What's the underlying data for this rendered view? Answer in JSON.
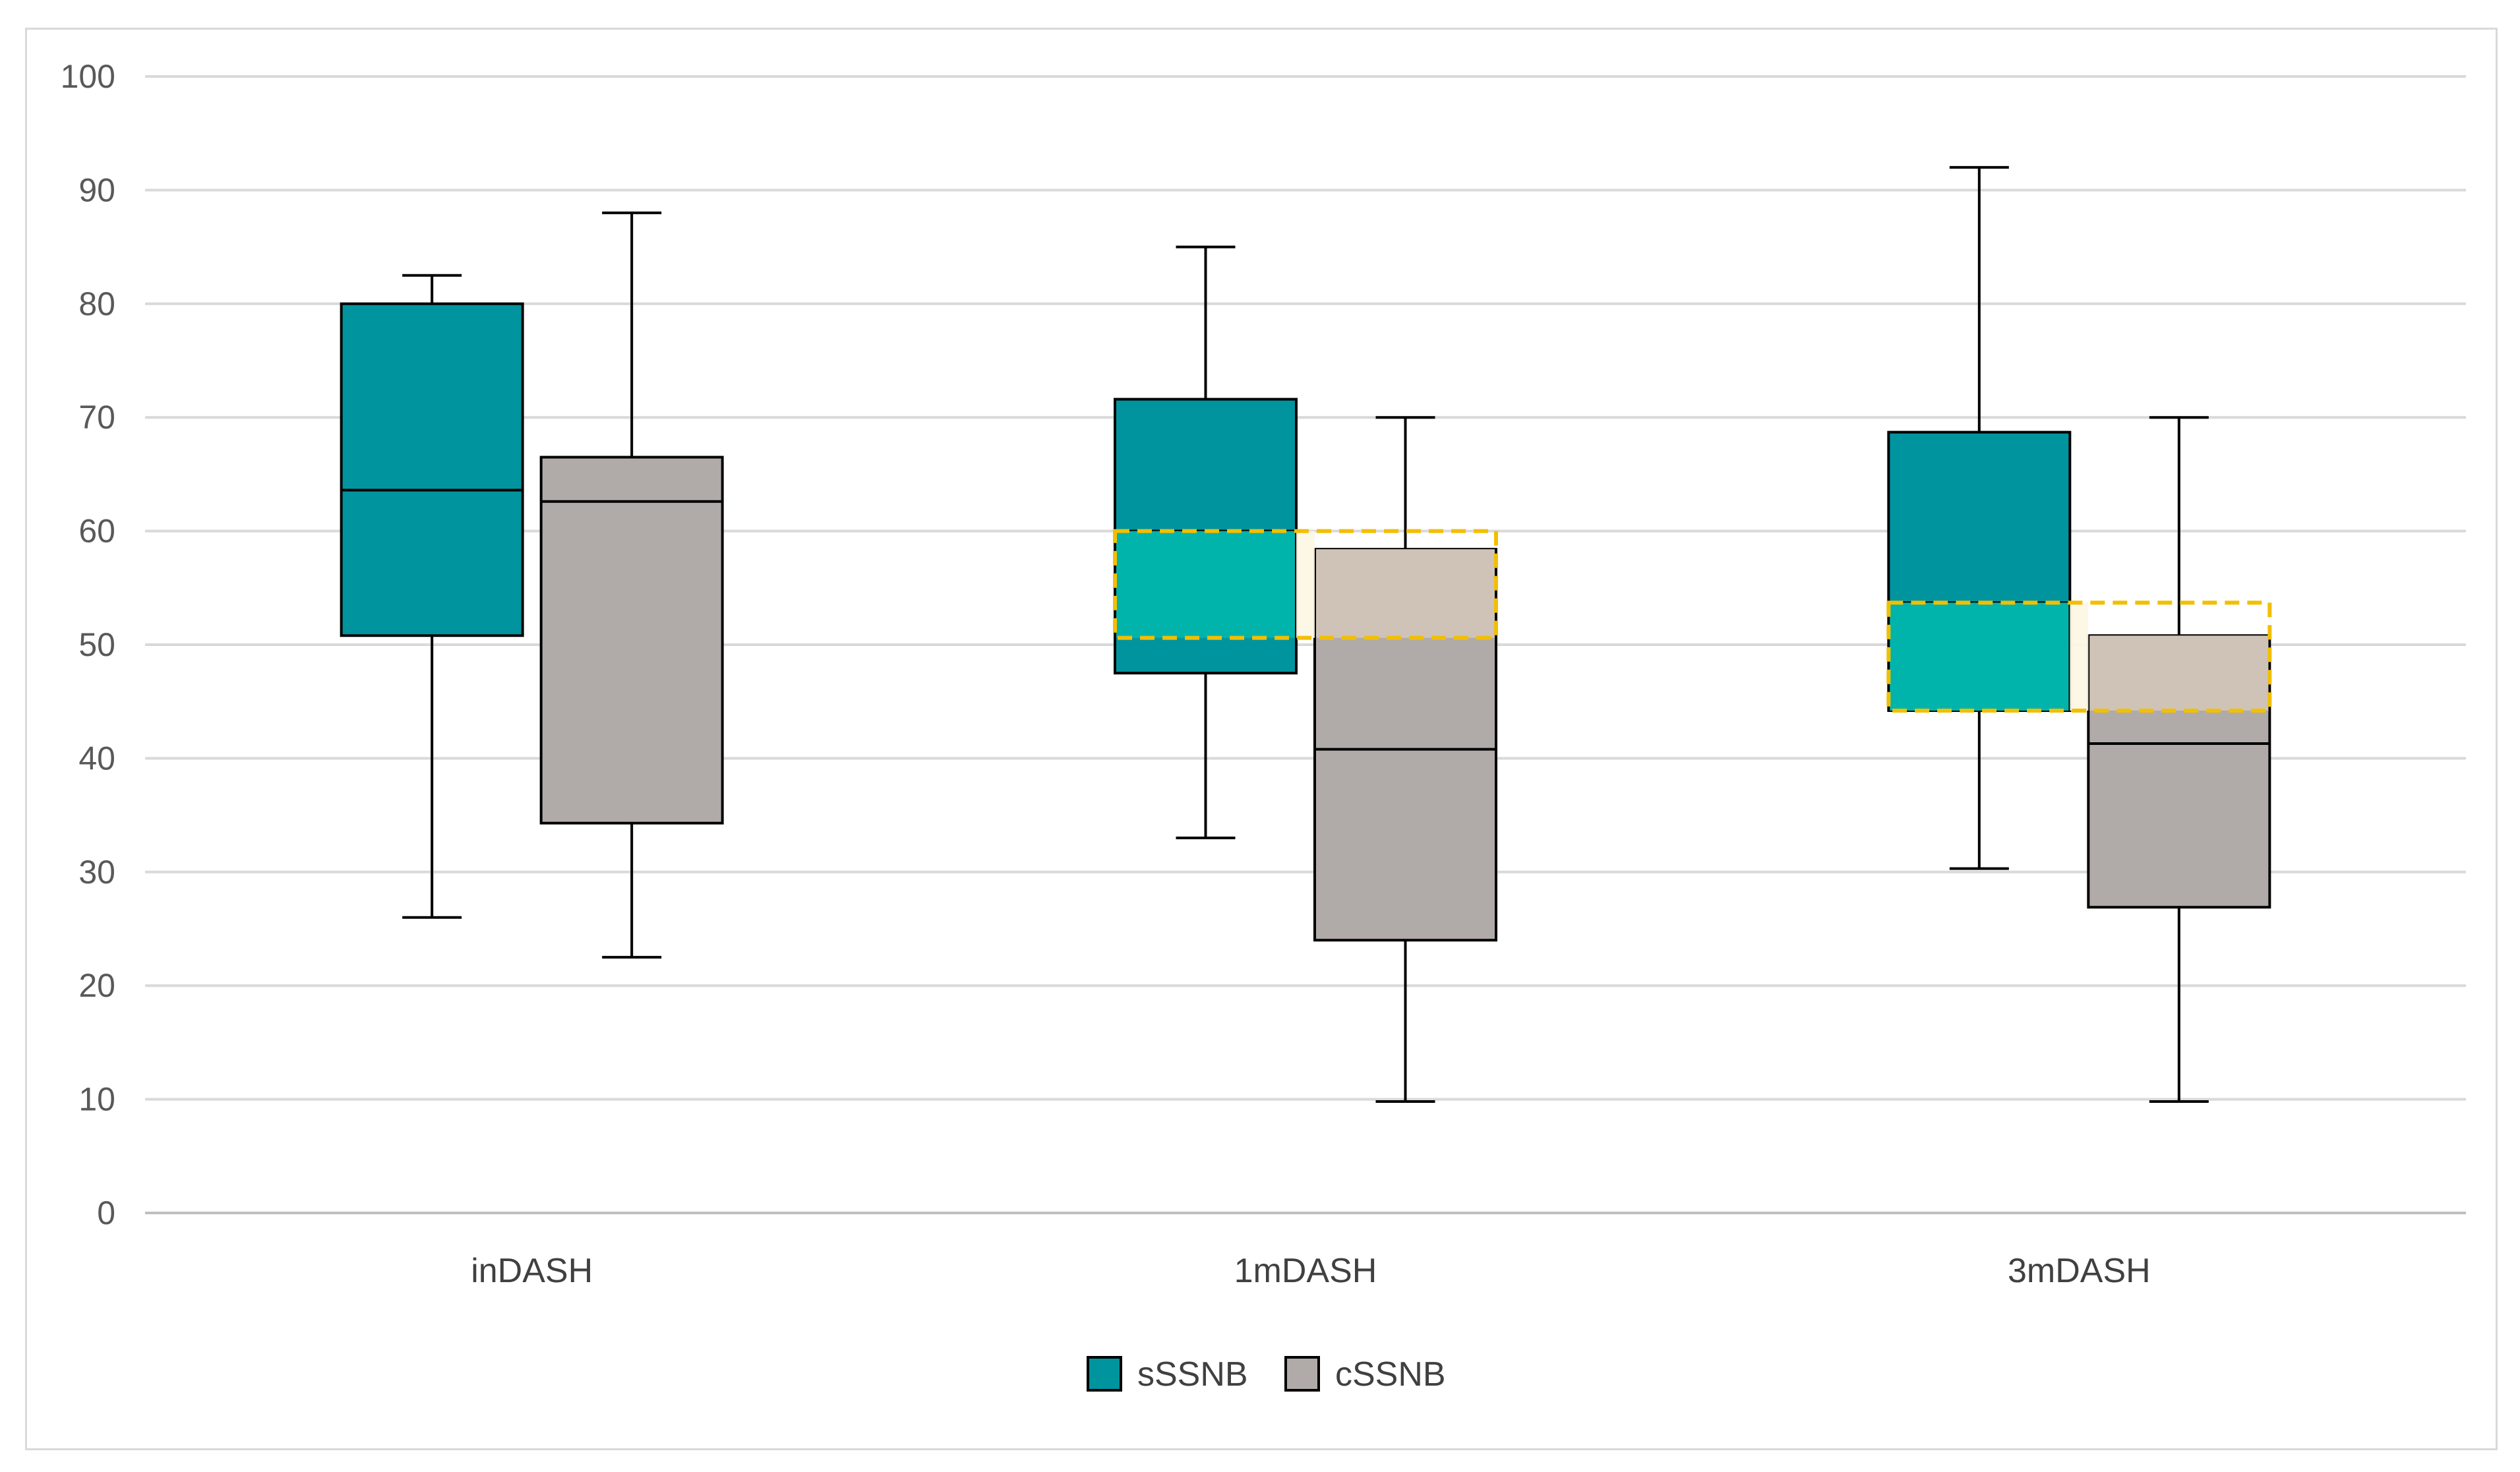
{
  "chart_data": {
    "type": "box",
    "title": "",
    "xlabel": "",
    "ylabel": "",
    "ylim": [
      0,
      100
    ],
    "yticks": [
      0,
      10,
      20,
      30,
      40,
      50,
      60,
      70,
      80,
      90,
      100
    ],
    "grid": true,
    "legend_position": "bottom",
    "categories": [
      "inDASH",
      "1mDASH",
      "3mDASH"
    ],
    "series": [
      {
        "name": "sSSNB",
        "color": "#00949f",
        "boxes": [
          {
            "min": 26,
            "q1": 50.8,
            "median": 63.6,
            "q3": 80,
            "max": 82.5
          },
          {
            "min": 33,
            "q1": 47.5,
            "median": 60,
            "q3": 71.6,
            "max": 85
          },
          {
            "min": 30.3,
            "q1": 44.2,
            "median": 53.7,
            "q3": 68.7,
            "max": 92
          }
        ]
      },
      {
        "name": "cSSNB",
        "color": "#b0aba8",
        "boxes": [
          {
            "min": 22.5,
            "q1": 34.3,
            "median": 62.6,
            "q3": 66.5,
            "max": 88
          },
          {
            "min": 9.8,
            "q1": 24,
            "median": 40.8,
            "q3": 58.4,
            "max": 70
          },
          {
            "min": 9.8,
            "q1": 26.9,
            "median": 41.3,
            "q3": 50.8,
            "max": 70
          }
        ]
      }
    ],
    "annotations": [
      {
        "type": "dashed-highlight",
        "category": "1mDASH",
        "y_from": 50.6,
        "y_to": 60,
        "color": "#f2bf00"
      },
      {
        "type": "dashed-highlight",
        "category": "3mDASH",
        "y_from": 44.2,
        "y_to": 53.7,
        "color": "#f2bf00"
      }
    ],
    "highlight_fill": {
      "sSSNB": "#00b4ac",
      "cSSNB": "#cfc3b8"
    }
  }
}
